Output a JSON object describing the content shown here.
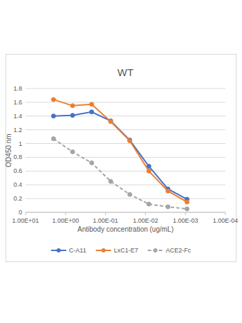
{
  "chart_data": {
    "type": "line",
    "title": "WT",
    "x_label": "Antibody concentration (ug/mL)",
    "y_label": "OD450 nm",
    "x": [
      2,
      0.667,
      0.222,
      0.0741,
      0.0247,
      0.00823,
      0.00274,
      0.000914
    ],
    "series": [
      {
        "name": "C-A11",
        "color": "#4472c4",
        "marker": "circle",
        "line_style": "solid",
        "values": [
          1.4,
          1.41,
          1.46,
          1.33,
          1.05,
          0.67,
          0.34,
          0.19
        ]
      },
      {
        "name": "LxC1-E7",
        "color": "#ed7d31",
        "marker": "circle",
        "line_style": "solid",
        "values": [
          1.64,
          1.55,
          1.57,
          1.32,
          1.04,
          0.6,
          0.31,
          0.15
        ]
      },
      {
        "name": "ACE2-Fc",
        "color": "#a5a5a5",
        "marker": "circle",
        "line_style": "dashed",
        "values": [
          1.07,
          0.88,
          0.72,
          0.45,
          0.26,
          0.12,
          0.08,
          0.05
        ]
      }
    ],
    "log": "x",
    "xlim": [
      10,
      0.0001
    ],
    "xticks": [
      {
        "value": 10,
        "label": "1.00E+01"
      },
      {
        "value": 1,
        "label": "1.00E+00"
      },
      {
        "value": 0.1,
        "label": "1.00E-01"
      },
      {
        "value": 0.01,
        "label": "1.00E-02"
      },
      {
        "value": 0.001,
        "label": "1.00E-03"
      },
      {
        "value": 0.0001,
        "label": "1.00E-04"
      }
    ],
    "ylim": [
      0,
      1.8
    ],
    "yticks": [
      0,
      0.2,
      0.4,
      0.6,
      0.8,
      1,
      1.2,
      1.4,
      1.6,
      1.8
    ],
    "grid": true,
    "legend": "bottom"
  }
}
